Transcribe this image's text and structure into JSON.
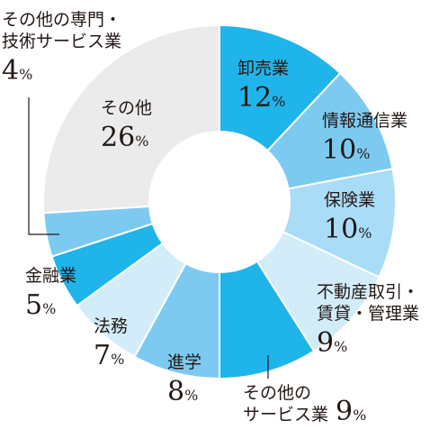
{
  "chart_data": {
    "type": "pie",
    "title": "",
    "unit": "%",
    "slices": [
      {
        "lines": [
          "卸売業"
        ],
        "value": 12,
        "color": "#1fb4ea"
      },
      {
        "lines": [
          "情報通信業"
        ],
        "value": 10,
        "color": "#7dcaf0"
      },
      {
        "lines": [
          "保険業"
        ],
        "value": 10,
        "color": "#a9dcf6"
      },
      {
        "lines": [
          "不動産取引・",
          "賃貸・管理業"
        ],
        "value": 9,
        "color": "#d2ecfa"
      },
      {
        "lines": [
          "その他の",
          "サービス業"
        ],
        "value": 9,
        "color": "#1fb4ea"
      },
      {
        "lines": [
          "進学"
        ],
        "value": 8,
        "color": "#7dcaf0"
      },
      {
        "lines": [
          "法務"
        ],
        "value": 7,
        "color": "#d2ecfa"
      },
      {
        "lines": [
          "金融業"
        ],
        "value": 5,
        "color": "#1fb4ea"
      },
      {
        "lines": [
          "その他の専門・",
          "技術サービス業"
        ],
        "value": 4,
        "color": "#7dcaf0"
      },
      {
        "lines": [
          "その他"
        ],
        "value": 26,
        "color": "#ebebeb"
      }
    ]
  }
}
